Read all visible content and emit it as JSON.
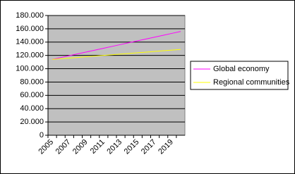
{
  "chart_data": {
    "type": "line",
    "categories": [
      2005,
      null,
      2007,
      null,
      2009,
      null,
      2011,
      null,
      2013,
      null,
      2015,
      null,
      2017,
      null,
      2019,
      null
    ],
    "series": [
      {
        "name": "Global economy",
        "color": "#ff00ff",
        "values": [
          114000,
          116800,
          119600,
          122400,
          125200,
          128000,
          130800,
          133600,
          136400,
          139200,
          142000,
          144800,
          147600,
          150400,
          153200,
          156000
        ]
      },
      {
        "name": "Regional communities",
        "color": "#ffff00",
        "values": [
          114000,
          115000,
          116000,
          117000,
          118000,
          119000,
          120000,
          121000,
          122000,
          123000,
          124000,
          125000,
          126000,
          127000,
          128000,
          129000
        ]
      }
    ],
    "ylim": [
      0,
      180000
    ],
    "yticks": [
      0,
      {
        "value": 20000,
        "label": "20.000"
      },
      {
        "value": 40000,
        "label": "40.000"
      },
      {
        "value": 60000,
        "label": "60.000"
      },
      {
        "value": 80000,
        "label": "80.000"
      },
      {
        "value": 100000,
        "label": "100.000"
      },
      {
        "value": 120000,
        "label": "120.000"
      },
      {
        "value": 140000,
        "label": "140.000"
      },
      {
        "value": 160000,
        "label": "160.000"
      },
      {
        "value": 180000,
        "label": "180.000"
      }
    ],
    "grid": true,
    "legend": "right",
    "plot_background": "#c0c0c0"
  }
}
